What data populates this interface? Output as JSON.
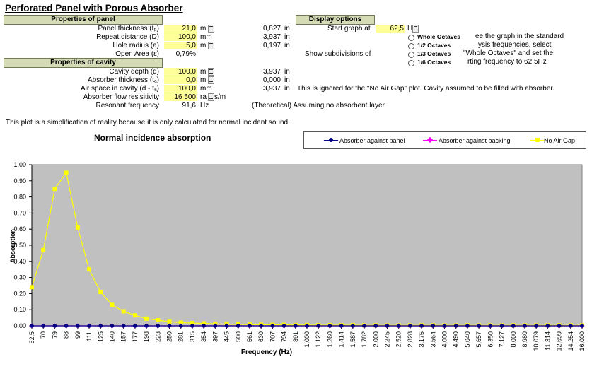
{
  "title": "Perforated Panel with Porous Absorber",
  "panel": {
    "header": "Properties of panel",
    "rows": [
      {
        "label": "Panel thickness (tₚ)",
        "value": "21,0",
        "unit": "m",
        "spin": true,
        "inch": "0,827",
        "inunit": "in"
      },
      {
        "label": "Repeat distance (D)",
        "value": "100,0",
        "unit": "mm",
        "spin": false,
        "inch": "3,937",
        "inunit": "in"
      },
      {
        "label": "Hole radius (a)",
        "value": "5,0",
        "unit": "m",
        "spin": true,
        "inch": "0,197",
        "inunit": "in"
      },
      {
        "label": "Open Area (ε)",
        "value": "0,79%",
        "unit": "",
        "spin": false,
        "inch": "",
        "inunit": ""
      }
    ]
  },
  "cavity": {
    "header": "Properties of cavity",
    "rows": [
      {
        "label": "Cavity depth (d)",
        "value": "100,0",
        "unit": "m",
        "spin": true,
        "inch": "3,937",
        "inunit": "in"
      },
      {
        "label": "Absorber thickness (tₐ)",
        "value": "0,0",
        "unit": "m",
        "spin": true,
        "inch": "0,000",
        "inunit": "in"
      },
      {
        "label": "Air space in cavity (d - tₐ)",
        "value": "100,0",
        "unit": "mm",
        "spin": false,
        "inch": "3,937",
        "inunit": "in"
      },
      {
        "label": "Absorber flow resisitivity",
        "value": "16 500",
        "unit": "ra",
        "unit2": "s/m",
        "spin": true,
        "inch": "",
        "inunit": ""
      },
      {
        "label": "Resonant frequency",
        "value": "91,6",
        "unit": "Hz",
        "spin": false,
        "inch": "",
        "inunit": ""
      }
    ],
    "note_ignored": "This is ignored for the \"No Air Gap\" plot.  Cavity assumed to be filled with absorber.",
    "note_theoretical": "(Theoretical) Assuming no absorbent layer."
  },
  "display": {
    "header": "Display options",
    "start_label": "Start graph at",
    "start_value": "62,5",
    "start_unit": "H",
    "subdiv_label": "Show subdivisions of",
    "options": [
      "Whole Octaves",
      "1/2 Octaves",
      "1/3 Octaves",
      "1/6 Octaves"
    ],
    "help": [
      "ee the graph in the standard",
      "ysis frequencies, select",
      "\"Whole Octaves\" and set the",
      "rting frequency to 62.5Hz"
    ]
  },
  "simplification_note": "This plot is a simplification of reality because it is only calculated for normal incident sound.",
  "colors": {
    "header_bg": "#d4dbb5",
    "input_bg": "#ffff99",
    "plot_bg": "#c0c0c0",
    "absorber_panel": "#000080",
    "absorber_backing": "#ff00ff",
    "no_air_gap": "#ffff00"
  },
  "chart_data": {
    "type": "line",
    "title": "Normal incidence absorption",
    "xlabel": "Frequency (Hz)",
    "ylabel": "Absorption",
    "ylim": [
      0,
      1
    ],
    "yticks": [
      "0.00",
      "0.10",
      "0.20",
      "0.30",
      "0.40",
      "0.50",
      "0.60",
      "0.70",
      "0.80",
      "0.90",
      "1.00"
    ],
    "categories": [
      "62,5",
      "70",
      "79",
      "88",
      "99",
      "111",
      "125",
      "140",
      "157",
      "177",
      "198",
      "223",
      "250",
      "281",
      "315",
      "354",
      "397",
      "445",
      "500",
      "561",
      "630",
      "707",
      "794",
      "891",
      "1,000",
      "1,122",
      "1,260",
      "1,414",
      "1,587",
      "1,782",
      "2,000",
      "2,245",
      "2,520",
      "2,828",
      "3,175",
      "3,564",
      "4,000",
      "4,490",
      "5,040",
      "5,657",
      "6,350",
      "7,127",
      "8,000",
      "8,980",
      "10,079",
      "11,314",
      "12,699",
      "14,254",
      "16,000"
    ],
    "legend_position": "top-right",
    "series": [
      {
        "name": "Absorber against panel",
        "color": "#000080",
        "marker": "circle",
        "values": [
          0,
          0,
          0,
          0,
          0,
          0,
          0,
          0,
          0,
          0,
          0,
          0,
          0,
          0,
          0,
          0,
          0,
          0,
          0,
          0,
          0,
          0,
          0,
          0,
          0,
          0,
          0,
          0,
          0,
          0,
          0,
          0,
          0,
          0,
          0,
          0,
          0,
          0,
          0,
          0,
          0,
          0,
          0,
          0,
          0,
          0,
          0,
          0,
          0
        ]
      },
      {
        "name": "Absorber against backing",
        "color": "#ff00ff",
        "marker": "diamond",
        "values": [
          0,
          0,
          0,
          0,
          0,
          0,
          0,
          0,
          0,
          0,
          0,
          0,
          0,
          0,
          0,
          0,
          0,
          0,
          0,
          0,
          0,
          0,
          0,
          0,
          0,
          0,
          0,
          0,
          0,
          0,
          0,
          0,
          0,
          0,
          0,
          0,
          0,
          0,
          0,
          0,
          0,
          0,
          0,
          0,
          0,
          0,
          0,
          0,
          0
        ]
      },
      {
        "name": "No Air Gap",
        "color": "#ffff00",
        "marker": "square",
        "values": [
          0.24,
          0.47,
          0.85,
          0.95,
          0.61,
          0.35,
          0.21,
          0.13,
          0.09,
          0.065,
          0.045,
          0.035,
          0.025,
          0.02,
          0.017,
          0.015,
          0.012,
          0.01,
          0.009,
          0.008,
          0.007,
          0.006,
          0.006,
          0.005,
          0.005,
          0.004,
          0.004,
          0.004,
          0.004,
          0.003,
          0.003,
          0.003,
          0.003,
          0.003,
          0.003,
          0.003,
          0.003,
          0.003,
          0.003,
          0.003,
          0.003,
          0.003,
          0.003,
          0.003,
          0.003,
          0.003,
          0.003,
          0.003,
          0.003
        ]
      }
    ]
  }
}
